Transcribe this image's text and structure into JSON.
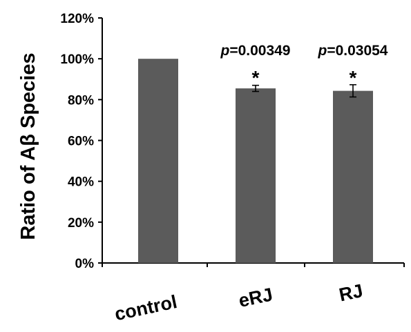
{
  "chart_data": {
    "type": "bar",
    "title": "",
    "xlabel": "",
    "ylabel": "Ratio of Aβ Species",
    "categories": [
      "control",
      "eRJ",
      "RJ"
    ],
    "values": [
      100,
      85.5,
      84.3
    ],
    "errors": [
      0,
      1.5,
      3.0
    ],
    "ylim": [
      0,
      120
    ],
    "yticks": [
      "0%",
      "20%",
      "40%",
      "60%",
      "80%",
      "100%",
      "120%"
    ],
    "ytick_values": [
      0,
      20,
      40,
      60,
      80,
      100,
      120
    ],
    "annotations": [
      {
        "category": "eRJ",
        "p_prefix": "p",
        "p_text": "=0.00349",
        "marker": "*"
      },
      {
        "category": "RJ",
        "p_prefix": "p",
        "p_text": "=0.03054",
        "marker": "*"
      }
    ],
    "colors": {
      "bar": "#5b5b5b",
      "axis": "#000000"
    },
    "grid": false,
    "legend": "none"
  }
}
